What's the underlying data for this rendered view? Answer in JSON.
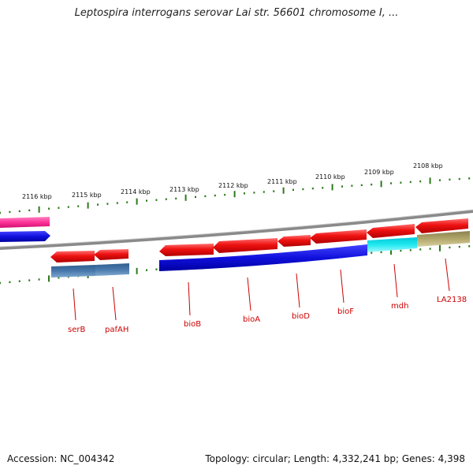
{
  "title": "Leptospira interrogans serovar Lai str. 56601 chromosome I, ...",
  "footer": {
    "accession": "Accession: NC_004342",
    "stats": "Topology: circular; Length: 4,332,241 bp; Genes: 4,398"
  },
  "ticks": [
    "2116 kbp",
    "2115 kbp",
    "2114 kbp",
    "2113 kbp",
    "2112 kbp",
    "2111 kbp",
    "2110 kbp",
    "2109 kbp",
    "2108 kbp"
  ],
  "gene_labels": [
    "serB",
    "pafAH",
    "bioB",
    "bioA",
    "bioD",
    "bioF",
    "mdh",
    "LA2138"
  ],
  "colors": {
    "forward_gene": "#ee1111",
    "reverse_blue": "#1010dd",
    "reverse_steel": "#4a7aad",
    "reverse_cyan": "#22e8f0",
    "reverse_khaki": "#b2a76a",
    "magenta": "#ff3399",
    "backbone": "#8a8a8a",
    "ticks": "#2a7a1a",
    "gene_label": "#cc0000"
  }
}
